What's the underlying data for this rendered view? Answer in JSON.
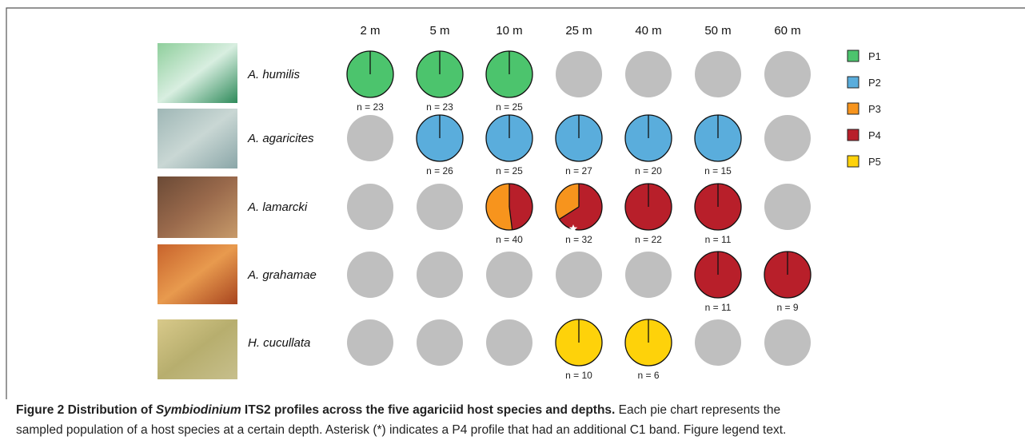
{
  "figure": {
    "depths": [
      "2 m",
      "5 m",
      "10 m",
      "25 m",
      "40 m",
      "50 m",
      "60 m"
    ],
    "legend": [
      {
        "name": "P1",
        "color": "#4cc46d"
      },
      {
        "name": "P2",
        "color": "#5aaddc"
      },
      {
        "name": "P3",
        "color": "#f7941d"
      },
      {
        "name": "P4",
        "color": "#b81f2a"
      },
      {
        "name": "P5",
        "color": "#fed20a"
      }
    ],
    "empty_color": "#bfbfbf",
    "rows": [
      {
        "species": "A. humilis",
        "cells": [
          {
            "n": "n = 23",
            "values": [
              100,
              0,
              0,
              0,
              0
            ]
          },
          {
            "n": "n = 23",
            "values": [
              100,
              0,
              0,
              0,
              0
            ]
          },
          {
            "n": "n = 25",
            "values": [
              100,
              0,
              0,
              0,
              0
            ]
          },
          null,
          null,
          null,
          null
        ]
      },
      {
        "species": "A. agaricites",
        "cells": [
          null,
          {
            "n": "n = 26",
            "values": [
              0,
              100,
              0,
              0,
              0
            ]
          },
          {
            "n": "n = 25",
            "values": [
              0,
              100,
              0,
              0,
              0
            ]
          },
          {
            "n": "n = 27",
            "values": [
              0,
              100,
              0,
              0,
              0
            ]
          },
          {
            "n": "n = 20",
            "values": [
              0,
              100,
              0,
              0,
              0
            ]
          },
          {
            "n": "n = 15",
            "values": [
              0,
              100,
              0,
              0,
              0
            ]
          },
          null
        ]
      },
      {
        "species": "A. lamarcki",
        "cells": [
          null,
          null,
          {
            "n": "n = 40",
            "values": [
              0,
              0,
              52,
              48,
              0
            ]
          },
          {
            "n": "n = 32",
            "values": [
              0,
              0,
              34,
              66,
              0
            ]
          },
          {
            "n": "n = 22",
            "values": [
              0,
              0,
              0,
              100,
              0
            ]
          },
          {
            "n": "n = 11",
            "values": [
              0,
              0,
              0,
              100,
              0
            ]
          },
          null
        ]
      },
      {
        "species": "A. grahamae",
        "cells": [
          null,
          null,
          null,
          null,
          null,
          {
            "n": "n = 11",
            "values": [
              0,
              0,
              0,
              100,
              0
            ]
          },
          {
            "n": "n = 9",
            "values": [
              0,
              0,
              0,
              100,
              0
            ]
          }
        ]
      },
      {
        "species": "H. cucullata",
        "cells": [
          null,
          null,
          null,
          {
            "n": "n = 10",
            "values": [
              0,
              0,
              0,
              0,
              100
            ]
          },
          {
            "n": "n = 6",
            "values": [
              0,
              0,
              0,
              0,
              100
            ]
          },
          null,
          null
        ]
      }
    ]
  },
  "caption": {
    "title_pre": "Figure 2 Distribution of ",
    "title_italic": "Symbiodinium",
    "title_post": " ITS2 profiles across the five agariciid host species and depths.",
    "text_1": " Each pie chart represents the",
    "text_2": "sampled population of a host species at a certain depth. Asterisk (*) indicates a P4 profile that had an additional C1 band. Figure legend text."
  }
}
